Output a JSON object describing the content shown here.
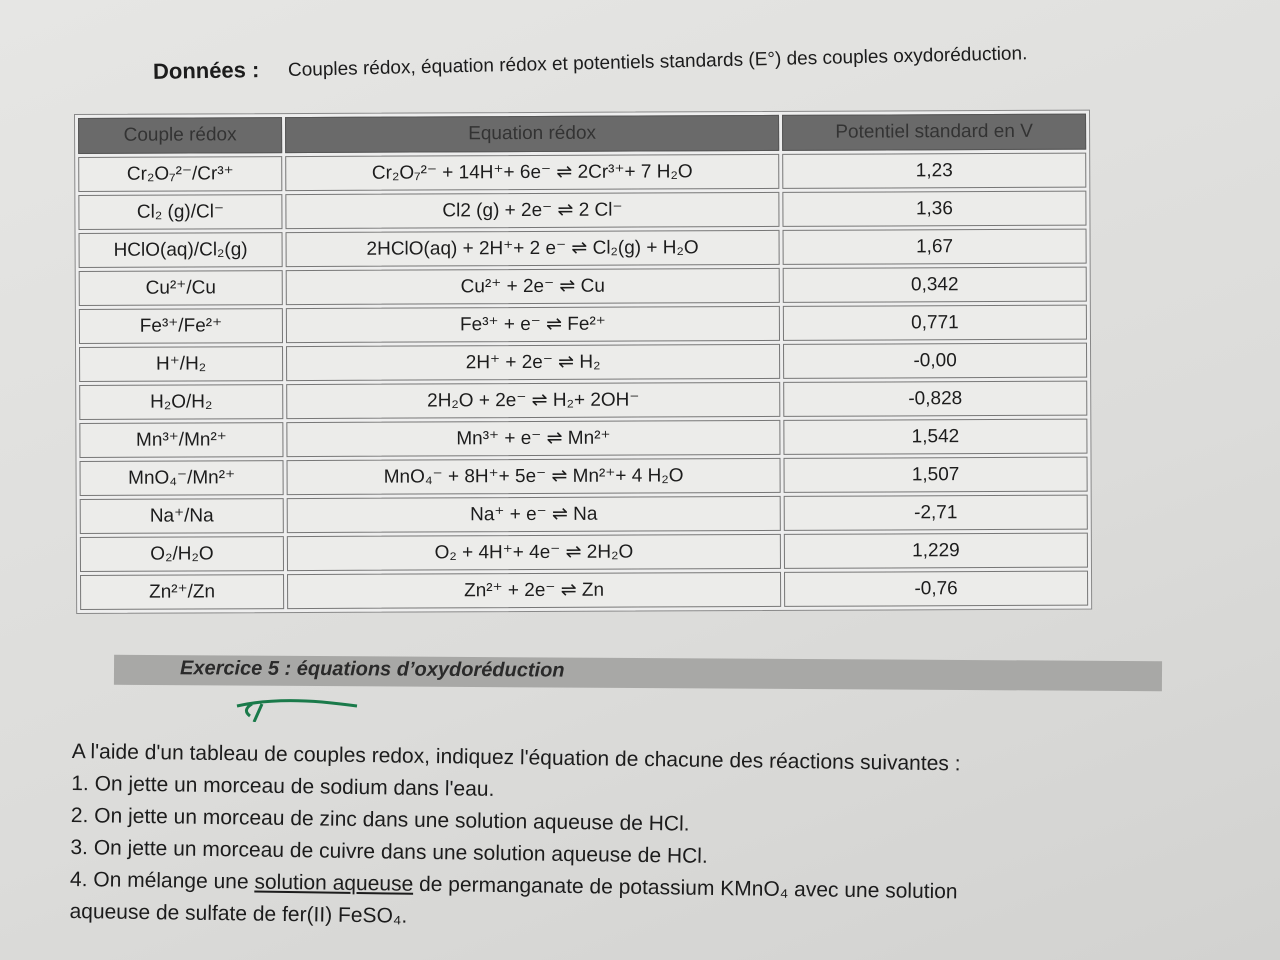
{
  "header": {
    "title": "Données :",
    "subtitle": "Couples rédox, équation rédox et potentiels standards (E°) des couples oxydoréduction."
  },
  "table": {
    "columns": [
      "Couple rédox",
      "Equation rédox",
      "Potentiel standard en V"
    ],
    "rows": [
      {
        "couple": "Cr₂O₇²⁻/Cr³⁺",
        "equation": "Cr₂O₇²⁻ + 14H⁺+ 6e⁻ ⇌ 2Cr³⁺+ 7 H₂O",
        "potential": "1,23"
      },
      {
        "couple": "Cl₂ (g)/Cl⁻",
        "equation": "Cl2 (g) + 2e⁻ ⇌ 2 Cl⁻",
        "potential": "1,36"
      },
      {
        "couple": "HClO(aq)/Cl₂(g)",
        "equation": "2HClO(aq)  + 2H⁺+ 2 e⁻ ⇌ Cl₂(g) + H₂O",
        "potential": "1,67"
      },
      {
        "couple": "Cu²⁺/Cu",
        "equation": "Cu²⁺ + 2e⁻ ⇌ Cu",
        "potential": "0,342"
      },
      {
        "couple": "Fe³⁺/Fe²⁺",
        "equation": "Fe³⁺ + e⁻ ⇌ Fe²⁺",
        "potential": "0,771"
      },
      {
        "couple": "H⁺/H₂",
        "equation": "2H⁺ + 2e⁻ ⇌ H₂",
        "potential": "-0,00"
      },
      {
        "couple": "H₂O/H₂",
        "equation": "2H₂O + 2e⁻ ⇌ H₂+ 2OH⁻",
        "potential": "-0,828"
      },
      {
        "couple": "Mn³⁺/Mn²⁺",
        "equation": "Mn³⁺ + e⁻ ⇌ Mn²⁺",
        "potential": "1,542"
      },
      {
        "couple": "MnO₄⁻/Mn²⁺",
        "equation": "MnO₄⁻ + 8H⁺+ 5e⁻ ⇌ Mn²⁺+ 4 H₂O",
        "potential": "1,507"
      },
      {
        "couple": "Na⁺/Na",
        "equation": "Na⁺ + e⁻ ⇌ Na",
        "potential": "-2,71"
      },
      {
        "couple": "O₂/H₂O",
        "equation": "O₂ + 4H⁺+ 4e⁻ ⇌ 2H₂O",
        "potential": "1,229"
      },
      {
        "couple": "Zn²⁺/Zn",
        "equation": "Zn²⁺ + 2e⁻ ⇌ Zn",
        "potential": "-0,76"
      }
    ]
  },
  "exercise": {
    "title": "Exercice 5 : équations d’oxydoréduction",
    "intro": "A l'aide d'un tableau de couples redox, indiquez l'équation de chacune des réactions suivantes :",
    "items": [
      "1. On jette un morceau de sodium dans l'eau.",
      "2. On jette un morceau de zinc dans une solution aqueuse de HCl.",
      "3. On jette un morceau de cuivre dans une solution aqueuse de HCl."
    ],
    "item4": {
      "before": "4. On mélange une ",
      "underlined": "solution aqueuse",
      "after": " de permanganate de potassium KMnO₄ avec une solution",
      "line2": "aqueuse de sulfate de fer(II) FeSO₄."
    }
  }
}
